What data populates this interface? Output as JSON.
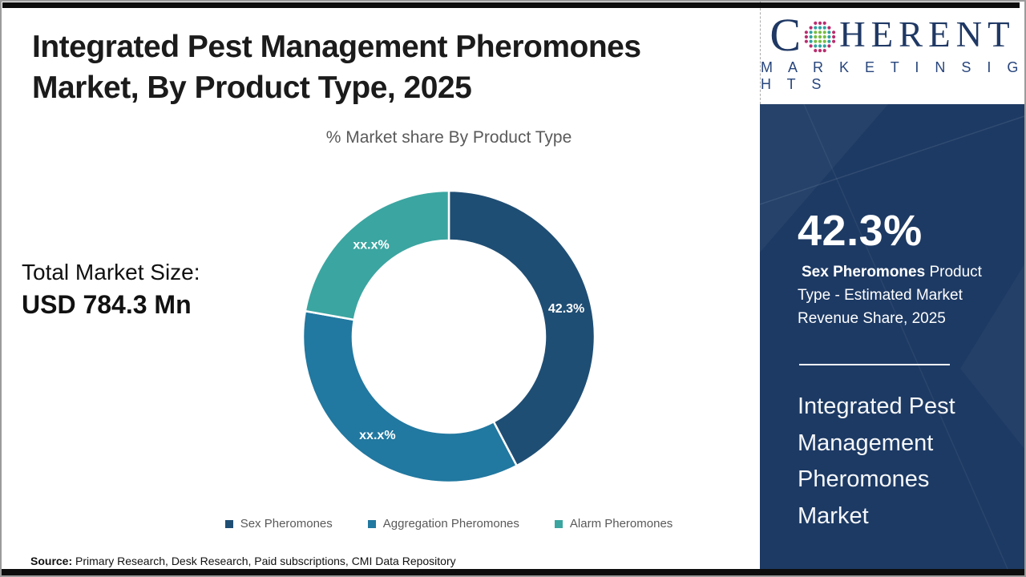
{
  "page": {
    "title_line1": "Integrated Pest Management Pheromones",
    "title_line2": "Market, By Product Type, 2025",
    "subtitle": "% Market share By Product Type",
    "total_market": {
      "label": "Total Market Size:",
      "value": "USD 784.3 Mn"
    },
    "source": {
      "prefix": "Source:",
      "text": " Primary Research, Desk Research, Paid subscriptions, CMI Data Repository"
    }
  },
  "chart_data": {
    "type": "pie",
    "variant": "donut",
    "title": "% Market share By Product Type",
    "categories": [
      "Sex Pheromones",
      "Aggregation Pheromones",
      "Alarm Pheromones"
    ],
    "values": [
      42.3,
      35.5,
      22.2
    ],
    "values_note": "Only the Sex Pheromones slice is labeled 42.3%; the other two slices are masked as xx.x% in the figure — their values are estimated from arc angles.",
    "display_labels": [
      "42.3%",
      "xx.x%",
      "xx.x%"
    ],
    "colors": [
      "#1f4e74",
      "#2178a0",
      "#3ba5a1"
    ],
    "start_angle_deg": 0,
    "direction": "clockwise",
    "inner_radius_ratio": 0.66,
    "separator_color": "#ffffff",
    "label_color": "#ffffff",
    "legend_position": "bottom"
  },
  "legend": {
    "items": [
      {
        "label": "Sex Pheromones",
        "color": "#1f4e74"
      },
      {
        "label": "Aggregation Pheromones",
        "color": "#2178a0"
      },
      {
        "label": "Alarm Pheromones",
        "color": "#3ba5a1"
      }
    ]
  },
  "sidebar": {
    "logo": {
      "c": "C",
      "rest": "HERENT",
      "subtitle": "M A R K E T   I N S I G H T S"
    },
    "stat_value": "42.3%",
    "stat_desc_bold": "Sex Pheromones",
    "stat_desc_rest": " Product Type - Estimated Market Revenue Share, 2025",
    "heading": "Integrated Pest Management Pheromones Market",
    "panel_color": "#1d3a64",
    "logo_color": "#1f3864"
  }
}
